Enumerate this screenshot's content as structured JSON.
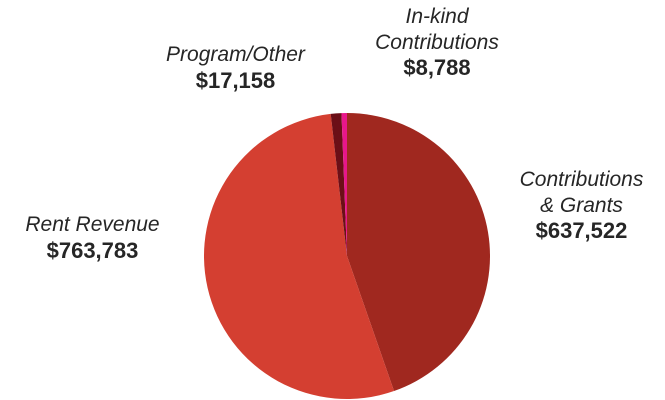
{
  "chart_data": {
    "type": "pie",
    "slices": [
      {
        "label_lines": [
          "Contributions",
          "& Grants"
        ],
        "value": 637522,
        "display_value": "$637,522",
        "color": "#a0281f"
      },
      {
        "label_lines": [
          "Rent Revenue"
        ],
        "value": 763783,
        "display_value": "$763,783",
        "color": "#d43f31"
      },
      {
        "label_lines": [
          "Program/Other"
        ],
        "value": 17158,
        "display_value": "$17,158",
        "color": "#6b0f17"
      },
      {
        "label_lines": [
          "In-kind",
          "Contributions"
        ],
        "value": 8788,
        "display_value": "$8,788",
        "color": "#e8178a"
      }
    ],
    "start": "12 o'clock, clockwise",
    "legend": "none",
    "labels_placement": "outside"
  }
}
